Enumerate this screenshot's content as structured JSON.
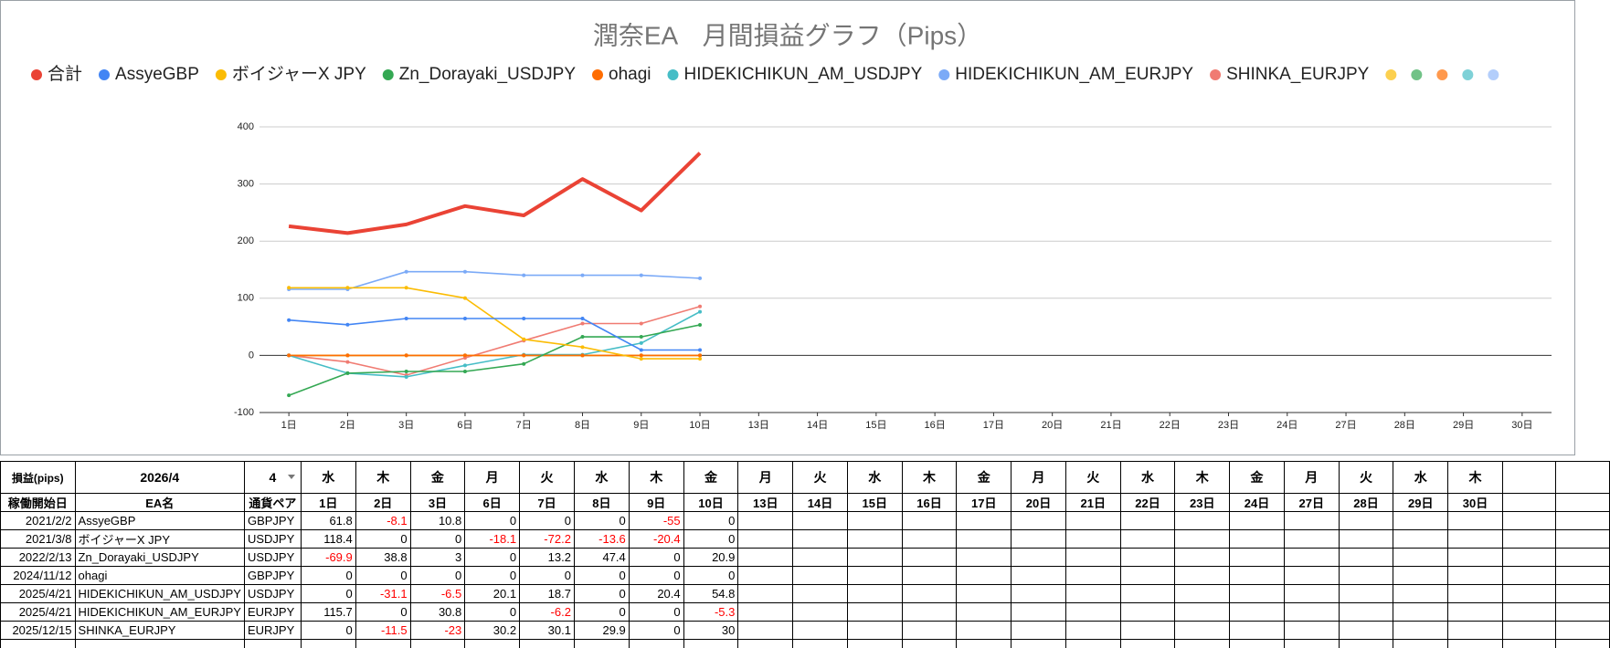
{
  "chart_data": {
    "type": "line",
    "title": "潤奈EA　月間損益グラフ（Pips）",
    "categories": [
      "1日",
      "2日",
      "3日",
      "6日",
      "7日",
      "8日",
      "9日",
      "10日",
      "13日",
      "14日",
      "15日",
      "16日",
      "17日",
      "20日",
      "21日",
      "22日",
      "23日",
      "24日",
      "27日",
      "28日",
      "29日",
      "30日"
    ],
    "ylim": [
      -100,
      400
    ],
    "yticks": [
      -100,
      0,
      100,
      200,
      300,
      400
    ],
    "grid": true,
    "series": [
      {
        "name": "合計",
        "color": "#ea4335",
        "values": [
          226,
          214.1,
          229.2,
          261.4,
          245,
          308.7,
          253.7,
          354.1,
          null,
          null,
          null,
          null,
          null,
          null,
          null,
          null,
          null,
          null,
          null,
          null,
          null,
          null
        ]
      },
      {
        "name": "AssyeGBP",
        "color": "#4285f4",
        "values": [
          61.8,
          53.7,
          64.5,
          64.5,
          64.5,
          64.5,
          9.5,
          9.5,
          null,
          null,
          null,
          null,
          null,
          null,
          null,
          null,
          null,
          null,
          null,
          null,
          null,
          null
        ]
      },
      {
        "name": "ボイジャーX JPY",
        "color": "#fbbc04",
        "values": [
          118.4,
          118.4,
          118.4,
          100.3,
          28.1,
          14.5,
          -5.9,
          -5.9,
          null,
          null,
          null,
          null,
          null,
          null,
          null,
          null,
          null,
          null,
          null,
          null,
          null,
          null
        ]
      },
      {
        "name": "Zn_Dorayaki_USDJPY",
        "color": "#34a853",
        "values": [
          -69.9,
          -31.1,
          -28.1,
          -28.1,
          -14.9,
          32.5,
          32.5,
          53.4,
          null,
          null,
          null,
          null,
          null,
          null,
          null,
          null,
          null,
          null,
          null,
          null,
          null,
          null
        ]
      },
      {
        "name": "ohagi",
        "color": "#ff6d01",
        "values": [
          0,
          0,
          0,
          0,
          0,
          0,
          0,
          0,
          null,
          null,
          null,
          null,
          null,
          null,
          null,
          null,
          null,
          null,
          null,
          null,
          null,
          null
        ]
      },
      {
        "name": "HIDEKICHIKUN_AM_USDJPY",
        "color": "#46bdc6",
        "values": [
          0,
          -31.1,
          -37.6,
          -17.5,
          1.2,
          1.2,
          21.6,
          76.4,
          null,
          null,
          null,
          null,
          null,
          null,
          null,
          null,
          null,
          null,
          null,
          null,
          null,
          null
        ]
      },
      {
        "name": "HIDEKICHIKUN_AM_EURJPY",
        "color": "#7baaf7",
        "values": [
          115.7,
          115.7,
          146.5,
          146.5,
          140.3,
          140.3,
          140.3,
          135,
          null,
          null,
          null,
          null,
          null,
          null,
          null,
          null,
          null,
          null,
          null,
          null,
          null,
          null
        ]
      },
      {
        "name": "SHINKA_EURJPY",
        "color": "#f07b72",
        "values": [
          0,
          -11.5,
          -34.5,
          -4.3,
          25.8,
          55.7,
          55.7,
          85.7,
          null,
          null,
          null,
          null,
          null,
          null,
          null,
          null,
          null,
          null,
          null,
          null,
          null,
          null
        ]
      },
      {
        "color": "#fcd04f",
        "values": [
          0,
          0,
          0,
          0,
          0,
          0,
          0,
          0,
          null,
          null,
          null,
          null,
          null,
          null,
          null,
          null,
          null,
          null,
          null,
          null,
          null,
          null
        ]
      },
      {
        "color": "#71c287",
        "values": [
          0,
          0,
          0,
          0,
          0,
          0,
          0,
          0,
          null,
          null,
          null,
          null,
          null,
          null,
          null,
          null,
          null,
          null,
          null,
          null,
          null,
          null
        ]
      },
      {
        "color": "#ff994d",
        "values": [
          0,
          0,
          0,
          0,
          0,
          0,
          0,
          0,
          null,
          null,
          null,
          null,
          null,
          null,
          null,
          null,
          null,
          null,
          null,
          null,
          null,
          null
        ]
      },
      {
        "color": "#7ed1d7",
        "values": [
          0,
          0,
          0,
          0,
          0,
          0,
          0,
          0,
          null,
          null,
          null,
          null,
          null,
          null,
          null,
          null,
          null,
          null,
          null,
          null,
          null,
          null
        ]
      },
      {
        "color": "#b3cefb",
        "values": [
          0,
          0,
          0,
          0,
          0,
          0,
          0,
          0,
          null,
          null,
          null,
          null,
          null,
          null,
          null,
          null,
          null,
          null,
          null,
          null,
          null,
          null
        ]
      }
    ]
  },
  "table": {
    "label": "損益(pips)",
    "month": "2026/4",
    "selector": "4",
    "weekdays": [
      "水",
      "木",
      "金",
      "月",
      "火",
      "水",
      "木",
      "金",
      "月",
      "火",
      "水",
      "木",
      "金",
      "月",
      "火",
      "水",
      "木",
      "金",
      "月",
      "火",
      "水",
      "木"
    ],
    "columns": [
      "稼働開始日",
      "EA名",
      "通貨ペア"
    ],
    "rows": [
      {
        "start": "2021/2/2",
        "name": "AssyeGBP",
        "pair": "GBPJPY",
        "values": [
          61.8,
          -8.1,
          10.8,
          0,
          0,
          0,
          -55,
          0
        ]
      },
      {
        "start": "2021/3/8",
        "name": "ボイジャーX JPY",
        "pair": "USDJPY",
        "values": [
          118.4,
          0,
          0,
          -18.1,
          -72.2,
          -13.6,
          -20.4,
          0
        ]
      },
      {
        "start": "2022/2/13",
        "name": "Zn_Dorayaki_USDJPY",
        "pair": "USDJPY",
        "values": [
          -69.9,
          38.8,
          3,
          0,
          13.2,
          47.4,
          0,
          20.9
        ]
      },
      {
        "start": "2024/11/12",
        "name": "ohagi",
        "pair": "GBPJPY",
        "values": [
          0,
          0,
          0,
          0,
          0,
          0,
          0,
          0
        ]
      },
      {
        "start": "2025/4/21",
        "name": "HIDEKICHIKUN_AM_USDJPY",
        "pair": "USDJPY",
        "values": [
          0,
          -31.1,
          -6.5,
          20.1,
          18.7,
          0,
          20.4,
          54.8
        ]
      },
      {
        "start": "2025/4/21",
        "name": "HIDEKICHIKUN_AM_EURJPY",
        "pair": "EURJPY",
        "values": [
          115.7,
          0,
          30.8,
          0,
          -6.2,
          0,
          0,
          -5.3
        ]
      },
      {
        "start": "2025/12/15",
        "name": "SHINKA_EURJPY",
        "pair": "EURJPY",
        "values": [
          0,
          -11.5,
          -23,
          30.2,
          30.1,
          29.9,
          0,
          30
        ]
      }
    ]
  }
}
